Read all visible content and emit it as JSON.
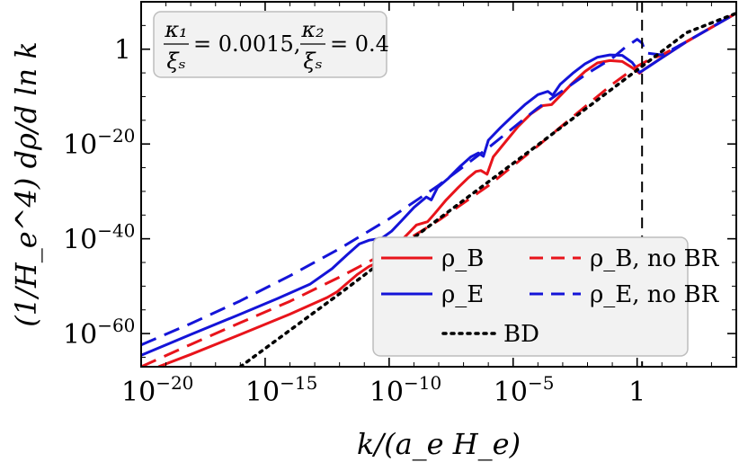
{
  "chart_data": {
    "type": "line",
    "title": "",
    "xlabel": "k/(a_e H_e)",
    "ylabel": "(1/H_e^4) dρ/d ln k",
    "x_scale": "log",
    "y_scale": "log",
    "xlim_log10": [
      -20,
      4
    ],
    "ylim_log10": [
      -67,
      10
    ],
    "xticks": [
      {
        "log10": -20,
        "base": "10",
        "exp": "−20"
      },
      {
        "log10": -15,
        "base": "10",
        "exp": "−15"
      },
      {
        "log10": -10,
        "base": "10",
        "exp": "−10"
      },
      {
        "log10": -5,
        "base": "10",
        "exp": "−5"
      },
      {
        "log10": 0,
        "base": "1",
        "exp": ""
      }
    ],
    "yticks": [
      {
        "log10": 0,
        "base": "1",
        "exp": ""
      },
      {
        "log10": -20,
        "base": "10",
        "exp": "−20"
      },
      {
        "log10": -40,
        "base": "10",
        "exp": "−40"
      },
      {
        "log10": -60,
        "base": "10",
        "exp": "−60"
      }
    ],
    "annotation": {
      "kappa1": "κ₁",
      "kappa2": "κ₂",
      "xi": "ξₛ",
      "value1": "= 0.0015,",
      "value2": "= 0.4"
    },
    "vline_log10_x": 0.2,
    "legend_placement": "lower-right",
    "series": [
      {
        "name": "ρ_B",
        "legend": "ρ_B",
        "color": "#e8141b",
        "style": "solid",
        "points": [
          [
            -19.3,
            -67
          ],
          [
            -18,
            -64.4
          ],
          [
            -16,
            -60.2
          ],
          [
            -14,
            -55.9
          ],
          [
            -12.5,
            -52.4
          ],
          [
            -12.1,
            -51.2
          ],
          [
            -11.3,
            -47.6
          ],
          [
            -10.8,
            -45.8
          ],
          [
            -10.3,
            -44.7
          ],
          [
            -10.05,
            -44.8
          ],
          [
            -9.8,
            -42.7
          ],
          [
            -9.4,
            -39.8
          ],
          [
            -8.9,
            -37.1
          ],
          [
            -8.45,
            -36.4
          ],
          [
            -8.15,
            -34.6
          ],
          [
            -7.7,
            -31.8
          ],
          [
            -7.2,
            -29.1
          ],
          [
            -6.8,
            -27.1
          ],
          [
            -6.5,
            -25.8
          ],
          [
            -6.3,
            -25.6
          ],
          [
            -6.05,
            -26.4
          ],
          [
            -5.8,
            -22.7
          ],
          [
            -5.3,
            -19.5
          ],
          [
            -4.8,
            -16.3
          ],
          [
            -4.3,
            -13.7
          ],
          [
            -3.8,
            -11.9
          ],
          [
            -3.45,
            -11.7
          ],
          [
            -3.1,
            -9.8
          ],
          [
            -2.6,
            -7.1
          ],
          [
            -2.1,
            -4.7
          ],
          [
            -1.6,
            -2.9
          ],
          [
            -1.1,
            -2.4
          ],
          [
            -0.6,
            -2.6
          ],
          [
            -0.2,
            -3.9
          ],
          [
            0.1,
            -5.1
          ],
          [
            0.3,
            -4.2
          ],
          [
            1,
            -1.8
          ],
          [
            2,
            1.6
          ],
          [
            4,
            7.6
          ]
        ]
      },
      {
        "name": "ρ_E",
        "legend": "ρ_E",
        "color": "#1414d8",
        "style": "solid",
        "points": [
          [
            -20,
            -64.6
          ],
          [
            -18,
            -60.2
          ],
          [
            -16,
            -55.9
          ],
          [
            -14.5,
            -52.6
          ],
          [
            -13.2,
            -49.6
          ],
          [
            -12.3,
            -46.3
          ],
          [
            -11.7,
            -43.4
          ],
          [
            -11.2,
            -41.1
          ],
          [
            -10.8,
            -40.3
          ],
          [
            -10.3,
            -39.9
          ],
          [
            -9.9,
            -38.4
          ],
          [
            -9.5,
            -36.2
          ],
          [
            -9,
            -33.4
          ],
          [
            -8.5,
            -31.2
          ],
          [
            -8.3,
            -31.8
          ],
          [
            -8.05,
            -29.2
          ],
          [
            -7.6,
            -27.2
          ],
          [
            -7.15,
            -24.8
          ],
          [
            -6.7,
            -22.7
          ],
          [
            -6.4,
            -21.9
          ],
          [
            -6.2,
            -22.6
          ],
          [
            -6,
            -19.2
          ],
          [
            -5.5,
            -16.5
          ],
          [
            -5,
            -14
          ],
          [
            -4.5,
            -11.6
          ],
          [
            -4,
            -9.6
          ],
          [
            -3.6,
            -8.9
          ],
          [
            -3.4,
            -9.7
          ],
          [
            -3.1,
            -7.4
          ],
          [
            -2.6,
            -5.1
          ],
          [
            -2.1,
            -3.1
          ],
          [
            -1.6,
            -1.7
          ],
          [
            -1.1,
            -1.2
          ],
          [
            -0.6,
            -1.3
          ],
          [
            -0.2,
            -2.8
          ],
          [
            0.1,
            -4.9
          ],
          [
            0.4,
            -3.9
          ],
          [
            1,
            -1.8
          ],
          [
            2,
            1.6
          ],
          [
            4,
            7.6
          ]
        ]
      },
      {
        "name": "ρ_B, no BR",
        "legend": "ρ_B, no BR",
        "color": "#e8141b",
        "style": "dashed",
        "points": [
          [
            -20,
            -67
          ],
          [
            -18,
            -62.3
          ],
          [
            -16,
            -57.7
          ],
          [
            -14,
            -53.2
          ],
          [
            -12,
            -48.1
          ],
          [
            -10,
            -42.6
          ],
          [
            -8,
            -36.1
          ],
          [
            -6,
            -28.8
          ],
          [
            -4,
            -20.4
          ],
          [
            -2,
            -11.7
          ],
          [
            -1,
            -7.4
          ],
          [
            0,
            -3.6
          ],
          [
            0.5,
            -2.2
          ],
          [
            1,
            -1.2
          ],
          [
            2,
            1.6
          ],
          [
            4,
            7.6
          ]
        ]
      },
      {
        "name": "ρ_E, no BR",
        "legend": "ρ_E, no BR",
        "color": "#1414d8",
        "style": "dashed",
        "points": [
          [
            -20,
            -62.4
          ],
          [
            -18,
            -57.9
          ],
          [
            -16,
            -53.1
          ],
          [
            -14,
            -47.8
          ],
          [
            -12,
            -42.1
          ],
          [
            -10,
            -35.8
          ],
          [
            -8,
            -28.7
          ],
          [
            -6,
            -20.8
          ],
          [
            -4,
            -12.4
          ],
          [
            -2,
            -5.1
          ],
          [
            -1,
            -1.9
          ],
          [
            -0.5,
            0.3
          ],
          [
            0,
            2.1
          ],
          [
            0.2,
            1.3
          ],
          [
            0.35,
            -0.8
          ],
          [
            1,
            -1.2
          ],
          [
            2,
            1.6
          ],
          [
            4,
            7.6
          ]
        ]
      },
      {
        "name": "BD",
        "legend": "BD",
        "color": "#000000",
        "style": "dotted",
        "points": [
          [
            -16,
            -67
          ],
          [
            -12,
            -51.6
          ],
          [
            -8,
            -35.8
          ],
          [
            -4,
            -20.2
          ],
          [
            0,
            -4.4
          ],
          [
            2,
            3.5
          ],
          [
            4,
            7.6
          ]
        ]
      }
    ]
  }
}
